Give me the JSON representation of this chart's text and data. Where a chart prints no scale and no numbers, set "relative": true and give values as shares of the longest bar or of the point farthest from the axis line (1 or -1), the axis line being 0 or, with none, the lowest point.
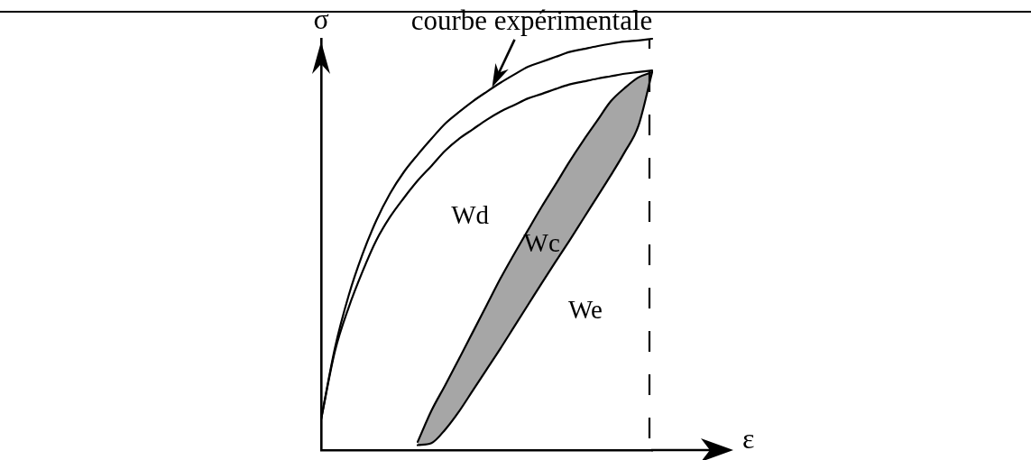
{
  "chart_data": {
    "type": "line",
    "relative": true,
    "xlabel": "ε",
    "ylabel": "σ",
    "marker": "none",
    "line_style": "solid",
    "categories": [
      null,
      null,
      null,
      null,
      null,
      null,
      null,
      null,
      null,
      null,
      null,
      null,
      null,
      null,
      null,
      null,
      null,
      null,
      null,
      null,
      null,
      null,
      null,
      null,
      null
    ],
    "series": [
      {
        "name": "courbe expérimentale",
        "color": "#000000",
        "values": [
          0.075,
          0.248,
          0.376,
          0.476,
          0.558,
          0.624,
          0.676,
          0.718,
          0.757,
          0.794,
          0.822,
          0.848,
          0.871,
          0.893,
          0.913,
          0.932,
          0.944,
          0.956,
          0.968,
          0.975,
          0.982,
          0.988,
          0.993,
          0.996,
          1.0
        ]
      },
      {
        "color": "#000000",
        "values": [
          0.075,
          0.24,
          0.347,
          0.434,
          0.51,
          0.567,
          0.613,
          0.655,
          0.691,
          0.728,
          0.757,
          0.78,
          0.803,
          0.823,
          0.839,
          0.855,
          0.866,
          0.878,
          0.889,
          0.896,
          0.903,
          0.909,
          0.915,
          0.919,
          0.923
        ]
      },
      {
        "color": "#000000",
        "values": [
          null,
          null,
          null,
          null,
          null,
          null,
          null,
          0.02,
          0.096,
          0.158,
          0.222,
          0.287,
          0.352,
          0.417,
          0.477,
          0.535,
          0.592,
          0.646,
          0.701,
          0.752,
          0.8,
          0.848,
          0.88,
          0.906,
          0.919
        ]
      },
      {
        "color": "#000000",
        "values": [
          null,
          null,
          null,
          null,
          null,
          null,
          null,
          0.012,
          0.017,
          0.05,
          0.094,
          0.145,
          0.196,
          0.247,
          0.3,
          0.353,
          0.406,
          0.458,
          0.509,
          0.562,
          0.615,
          0.668,
          0.724,
          0.788,
          0.919
        ]
      },
      {
        "name": "Wc",
        "color": "#000000",
        "values": [
          null,
          null,
          null,
          null,
          null,
          null,
          null,
          null,
          null,
          null,
          null,
          null,
          null,
          null,
          null,
          null,
          null,
          null,
          null,
          null,
          null,
          null,
          null,
          null,
          null
        ],
        "upper": [
          null,
          null,
          null,
          null,
          null,
          null,
          null,
          0.02,
          0.096,
          0.158,
          0.222,
          0.287,
          0.352,
          0.417,
          0.477,
          0.535,
          0.592,
          0.646,
          0.701,
          0.752,
          0.8,
          0.848,
          0.88,
          0.906,
          0.919
        ],
        "lower": [
          null,
          null,
          null,
          null,
          null,
          null,
          null,
          0.012,
          0.017,
          0.05,
          0.094,
          0.145,
          0.196,
          0.247,
          0.3,
          0.353,
          0.406,
          0.458,
          0.509,
          0.562,
          0.615,
          0.668,
          0.724,
          0.788,
          0.919
        ]
      }
    ],
    "ref_lines": [
      {
        "axis": "x",
        "line_style": "dashed",
        "color": "#000000"
      }
    ],
    "annotations": [
      "Wd",
      "We"
    ]
  }
}
